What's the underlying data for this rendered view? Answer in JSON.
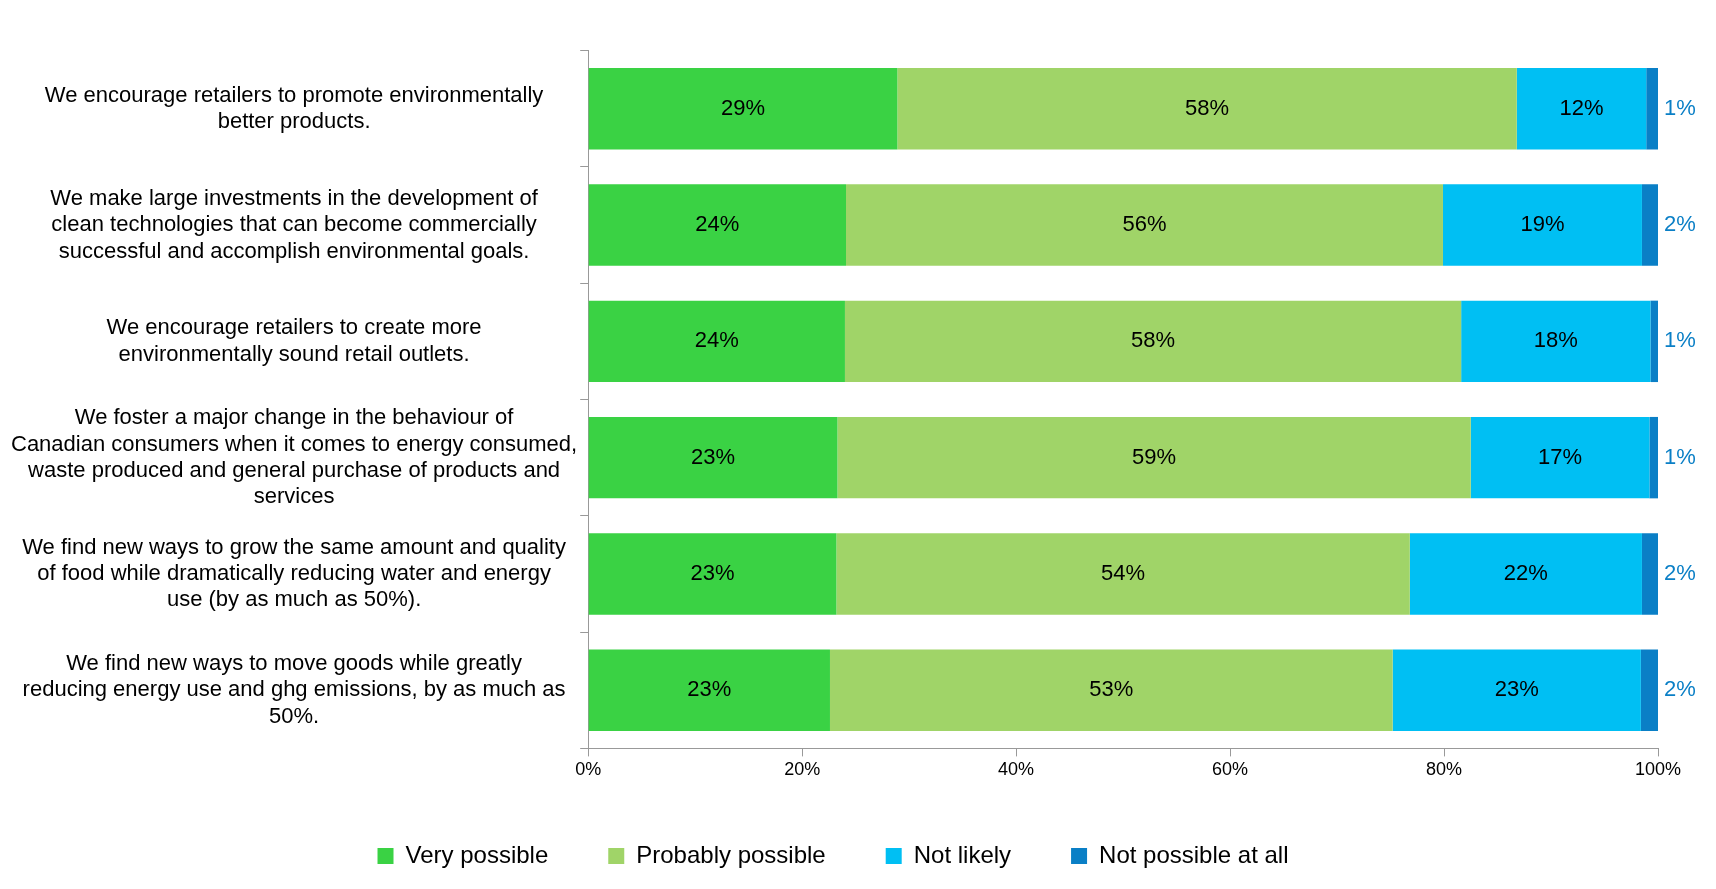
{
  "chart_data": {
    "type": "bar",
    "orientation": "horizontal",
    "stacked": true,
    "categories": [
      "We encourage retailers to promote environmentally better products.",
      "We make large investments in the development of clean technologies that can become commercially successful and accomplish environmental goals.",
      "We encourage retailers to create more environmentally sound retail outlets.",
      "We foster a major change in the behaviour of Canadian consumers when it comes to energy consumed, waste produced and general purchase of products and services",
      "We find new ways to grow the same amount and quality of food while dramatically reducing water and energy use (by as much as 50%).",
      "We find new ways to move goods while greatly reducing energy use and ghg emissions, by as much as 50%."
    ],
    "series": [
      {
        "name": "Very possible",
        "color": "#3ad244",
        "values": [
          28.9,
          24.1,
          24.0,
          23.3,
          23.2,
          22.6
        ],
        "value_labels": [
          "29%",
          "24%",
          "24%",
          "23%",
          "23%",
          "23%"
        ]
      },
      {
        "name": "Probably possible",
        "color": "#a0d468",
        "values": [
          57.9,
          55.8,
          57.6,
          59.2,
          53.6,
          52.6
        ],
        "value_labels": [
          "58%",
          "56%",
          "58%",
          "59%",
          "54%",
          "53%"
        ]
      },
      {
        "name": "Not likely",
        "color": "#00bff3",
        "values": [
          12.1,
          18.6,
          17.7,
          16.7,
          21.7,
          23.2
        ],
        "value_labels": [
          "12%",
          "19%",
          "18%",
          "17%",
          "22%",
          "23%"
        ]
      },
      {
        "name": "Not possible at all",
        "color": "#0a7fc6",
        "values": [
          1.1,
          1.5,
          0.7,
          0.8,
          1.5,
          1.6
        ],
        "value_labels": [
          "1%",
          "2%",
          "1%",
          "1%",
          "2%",
          "2%"
        ]
      }
    ],
    "xlim": [
      0,
      100
    ],
    "xticks": [
      {
        "value": 0,
        "label": "0%"
      },
      {
        "value": 20,
        "label": "20%"
      },
      {
        "value": 40,
        "label": "40%"
      },
      {
        "value": 60,
        "label": "60%"
      },
      {
        "value": 80,
        "label": "80%"
      },
      {
        "value": 100,
        "label": "100%"
      }
    ],
    "grid": false,
    "legend": "bottom"
  }
}
